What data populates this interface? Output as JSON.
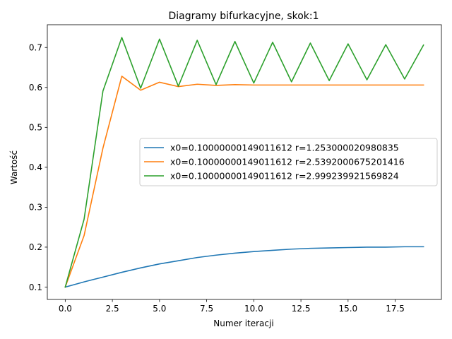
{
  "chart_data": {
    "type": "line",
    "title": "Diagramy bifurkacyjne, skok:1",
    "xlabel": "Numer iteracji",
    "ylabel": "Wartość",
    "xlim": [
      -0.95,
      19.95
    ],
    "ylim": [
      0.069,
      0.757
    ],
    "xticks": [
      0.0,
      2.5,
      5.0,
      7.5,
      10.0,
      12.5,
      15.0,
      17.5
    ],
    "xtick_labels": [
      "0.0",
      "2.5",
      "5.0",
      "7.5",
      "10.0",
      "12.5",
      "15.0",
      "17.5"
    ],
    "yticks": [
      0.1,
      0.2,
      0.3,
      0.4,
      0.5,
      0.6,
      0.7
    ],
    "ytick_labels": [
      "0.1",
      "0.2",
      "0.3",
      "0.4",
      "0.5",
      "0.6",
      "0.7"
    ],
    "grid": false,
    "legend_position": "center-right",
    "x": [
      0,
      1,
      2,
      3,
      4,
      5,
      6,
      7,
      8,
      9,
      10,
      11,
      12,
      13,
      14,
      15,
      16,
      17,
      18,
      19
    ],
    "series": [
      {
        "name": "x0=0.10000000149011612 r=1.253000020980835",
        "color": "#1f77b4",
        "values": [
          0.1,
          0.113,
          0.125,
          0.137,
          0.148,
          0.158,
          0.166,
          0.174,
          0.18,
          0.185,
          0.189,
          0.192,
          0.195,
          0.197,
          0.198,
          0.199,
          0.2,
          0.2,
          0.201,
          0.201
        ]
      },
      {
        "name": "x0=0.10000000149011612 r=2.5392000675201416",
        "color": "#ff7f0e",
        "values": [
          0.1,
          0.229,
          0.448,
          0.628,
          0.593,
          0.613,
          0.602,
          0.608,
          0.605,
          0.607,
          0.606,
          0.606,
          0.606,
          0.606,
          0.606,
          0.606,
          0.606,
          0.606,
          0.606,
          0.606
        ]
      },
      {
        "name": "x0=0.10000000149011612 r=2.999239921569824",
        "color": "#2ca02c",
        "values": [
          0.1,
          0.27,
          0.591,
          0.725,
          0.598,
          0.721,
          0.603,
          0.718,
          0.607,
          0.715,
          0.611,
          0.713,
          0.614,
          0.711,
          0.617,
          0.709,
          0.619,
          0.707,
          0.621,
          0.706
        ]
      }
    ]
  }
}
